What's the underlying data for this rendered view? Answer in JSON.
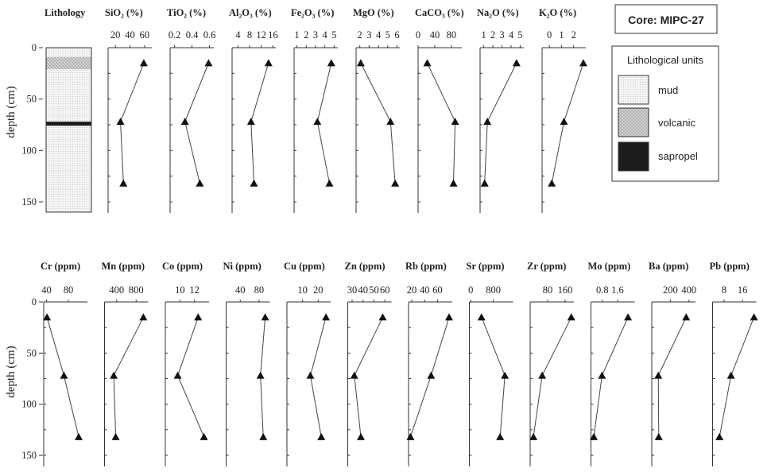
{
  "core_label": "Core: MIPC-27",
  "lithology": {
    "title": "Lithology",
    "legend_title": "Lithological units",
    "units": [
      {
        "name": "mud",
        "pattern": "mud"
      },
      {
        "name": "volcanic",
        "pattern": "volcanic"
      },
      {
        "name": "sapropel",
        "pattern": "sapropel"
      }
    ],
    "layers": [
      {
        "unit": "mud",
        "top": 0,
        "bottom": 9
      },
      {
        "unit": "volcanic",
        "top": 9,
        "bottom": 21
      },
      {
        "unit": "mud",
        "top": 21,
        "bottom": 72
      },
      {
        "unit": "sapropel",
        "top": 72,
        "bottom": 76
      },
      {
        "unit": "mud",
        "top": 76,
        "bottom": 160
      }
    ]
  },
  "chart_data": [
    {
      "type": "line",
      "panel_row": "top",
      "ylabel": "depth (cm)",
      "ylim": [
        0,
        160
      ],
      "y_reversed": true,
      "yticks": [
        "0",
        "50",
        "100",
        "150"
      ],
      "series": [
        {
          "title": "SiO₂ (%)",
          "xlim": [
            10,
            70
          ],
          "xticks": [
            "20",
            "40",
            "60"
          ],
          "x": [
            59,
            27,
            31
          ],
          "y": [
            15,
            72,
            132
          ]
        },
        {
          "title": "TiO₂ (%)",
          "xlim": [
            0.15,
            0.65
          ],
          "xticks": [
            "0.2",
            "0.4",
            "0.6"
          ],
          "x": [
            0.59,
            0.32,
            0.49
          ],
          "y": [
            15,
            72,
            132
          ]
        },
        {
          "title": "Al₂O₃ (%)",
          "xlim": [
            2,
            17
          ],
          "xticks": [
            "4",
            "8",
            "12",
            "16"
          ],
          "x": [
            14.5,
            8.5,
            9.5
          ],
          "y": [
            15,
            72,
            132
          ]
        },
        {
          "title": "Fe₂O₃ (%)",
          "xlim": [
            0.7,
            5.4
          ],
          "xticks": [
            "1",
            "2",
            "3",
            "4",
            "5"
          ],
          "x": [
            4.7,
            3.2,
            4.5
          ],
          "y": [
            15,
            72,
            132
          ]
        },
        {
          "title": "MgO (%)",
          "xlim": [
            1.6,
            6.3
          ],
          "xticks": [
            "2",
            "3",
            "4",
            "5",
            "6"
          ],
          "x": [
            2.1,
            5.3,
            5.8
          ],
          "y": [
            15,
            72,
            132
          ]
        },
        {
          "title": "CaCO₃ (%)",
          "xlim": [
            0,
            105
          ],
          "xticks": [
            "0",
            "40",
            "80"
          ],
          "x": [
            22,
            89,
            85
          ],
          "y": [
            15,
            72,
            132
          ]
        },
        {
          "title": "Na₂O (%)",
          "xlim": [
            0.6,
            5.4
          ],
          "xticks": [
            "1",
            "2",
            "3",
            "4",
            "5"
          ],
          "x": [
            4.6,
            1.4,
            1.1
          ],
          "y": [
            15,
            72,
            132
          ]
        },
        {
          "title": "K₂O (%)",
          "xlim": [
            -0.6,
            3
          ],
          "xticks": [
            "0",
            "1",
            "2"
          ],
          "x": [
            2.8,
            1.2,
            0.2
          ],
          "y": [
            15,
            72,
            132
          ]
        }
      ]
    },
    {
      "type": "line",
      "panel_row": "bottom",
      "ylabel": "depth (cm)",
      "ylim": [
        0,
        160
      ],
      "y_reversed": true,
      "yticks": [
        "0",
        "50",
        "100",
        "150"
      ],
      "series": [
        {
          "title": "Cr (ppm)",
          "xlim": [
            35,
            115
          ],
          "xticks": [
            "40",
            "80"
          ],
          "x": [
            41,
            72,
            99
          ],
          "y": [
            15,
            72,
            132
          ]
        },
        {
          "title": "Mn (ppm)",
          "xlim": [
            150,
            1050
          ],
          "xticks": [
            "400",
            "800"
          ],
          "x": [
            950,
            340,
            380
          ],
          "y": [
            15,
            72,
            132
          ]
        },
        {
          "title": "Co (ppm)",
          "xlim": [
            8,
            14
          ],
          "xticks": [
            "10",
            "12"
          ],
          "x": [
            12.5,
            9.7,
            13.3
          ],
          "y": [
            15,
            72,
            132
          ]
        },
        {
          "title": "Ni (ppm)",
          "xlim": [
            10,
            103
          ],
          "xticks": [
            "40",
            "80"
          ],
          "x": [
            93,
            83,
            89
          ],
          "y": [
            15,
            72,
            132
          ]
        },
        {
          "title": "Cu (ppm)",
          "xlim": [
            0,
            28
          ],
          "xticks": [
            "10",
            "20"
          ],
          "x": [
            25,
            15,
            22
          ],
          "y": [
            15,
            72,
            132
          ]
        },
        {
          "title": "Zn (ppm)",
          "xlim": [
            26,
            66
          ],
          "xticks": [
            "30",
            "40",
            "50",
            "60"
          ],
          "x": [
            58,
            32,
            38
          ],
          "y": [
            15,
            72,
            132
          ]
        },
        {
          "title": "Rb (ppm)",
          "xlim": [
            15,
            83
          ],
          "xticks": [
            "20",
            "40",
            "60"
          ],
          "x": [
            78,
            50,
            18
          ],
          "y": [
            15,
            72,
            132
          ]
        },
        {
          "title": "Sr (ppm)",
          "xlim": [
            -50,
            1500
          ],
          "xticks": [
            "0",
            "800"
          ],
          "x": [
            380,
            1210,
            1040
          ],
          "y": [
            15,
            72,
            132
          ]
        },
        {
          "title": "Zr (ppm)",
          "xlim": [
            0,
            200
          ],
          "xticks": [
            "80",
            "160"
          ],
          "x": [
            188,
            55,
            15
          ],
          "y": [
            15,
            72,
            132
          ]
        },
        {
          "title": "Mo (ppm)",
          "xlim": [
            0.2,
            2.5
          ],
          "xticks": [
            "0.8",
            "1.6"
          ],
          "x": [
            2.15,
            0.78,
            0.35
          ],
          "y": [
            15,
            72,
            132
          ]
        },
        {
          "title": "Ba (ppm)",
          "xlim": [
            0,
            470
          ],
          "xticks": [
            "200",
            "400"
          ],
          "x": [
            370,
            70,
            75
          ],
          "y": [
            15,
            72,
            132
          ]
        },
        {
          "title": "Pb (ppm)",
          "xlim": [
            3,
            22
          ],
          "xticks": [
            "8",
            "16"
          ],
          "x": [
            21,
            11,
            6
          ],
          "y": [
            15,
            72,
            132
          ]
        }
      ]
    }
  ]
}
